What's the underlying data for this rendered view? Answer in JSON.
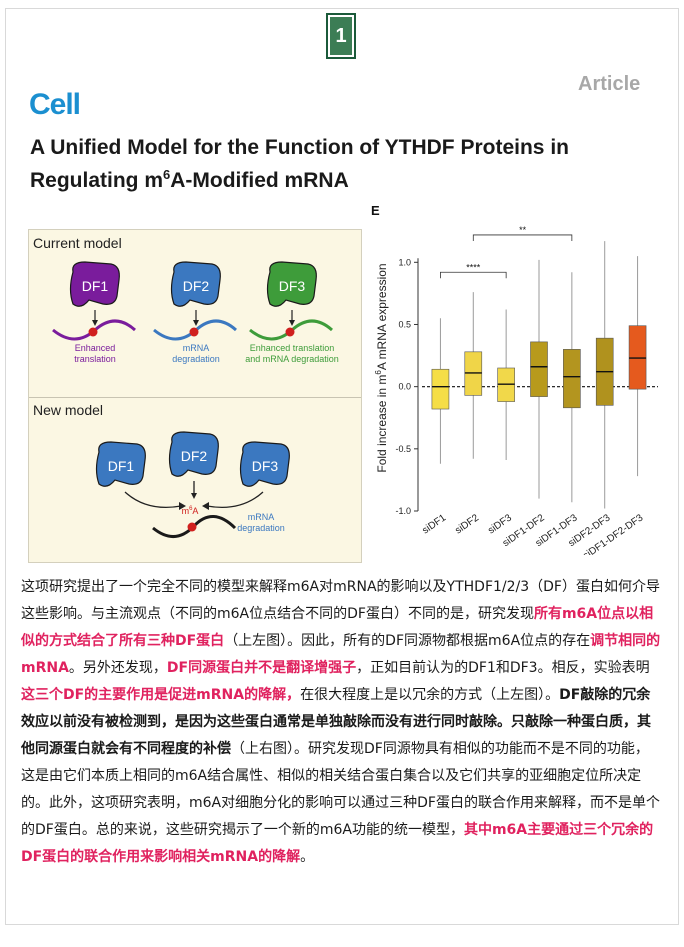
{
  "page_number": "1",
  "journal": {
    "name": "Cell",
    "tag": "Article"
  },
  "title": {
    "line1": "A Unified Model for the Function of YTHDF Proteins in",
    "line2_before": "Regulating m",
    "line2_sup": "6",
    "line2_after": "A-Modified mRNA"
  },
  "figure_left": {
    "current_model": {
      "heading": "Current model",
      "proteins": [
        {
          "name": "DF1",
          "color": "#7a1c9c",
          "caption_lines": [
            "Enhanced",
            "translation"
          ],
          "caption_color": "#7a1c9c"
        },
        {
          "name": "DF2",
          "color": "#3b78c0",
          "caption_lines": [
            "mRNA",
            "degradation"
          ],
          "caption_color": "#3b78c0"
        },
        {
          "name": "DF3",
          "color": "#3e9c3a",
          "caption_lines": [
            "Enhanced translation",
            "and mRNA degradation"
          ],
          "caption_color": "#3e9c3a"
        }
      ]
    },
    "new_model": {
      "heading": "New model",
      "proteins": [
        "DF1",
        "DF2",
        "DF3"
      ],
      "protein_color": "#3b78c0",
      "site_label": "m",
      "site_label_sup": "6",
      "site_label_after": "A",
      "outcome_lines": [
        "mRNA",
        "degradation"
      ],
      "outcome_color": "#3b78c0"
    }
  },
  "chart_data": {
    "panel_label": "E",
    "type": "box",
    "ylabel_before": "Fold increase in m",
    "ylabel_sup": "6",
    "ylabel_after": "A mRNA expression",
    "ylim": [
      -1.0,
      1.3
    ],
    "yticks": [
      "1.0",
      "0.5",
      "0.0",
      "-0.5",
      "-1.0"
    ],
    "ytick_values": [
      1.0,
      0.5,
      0.0,
      -0.5,
      -1.0
    ],
    "reference_line": 0.0,
    "categories": [
      "siDF1",
      "siDF2",
      "siDF3",
      "siDF1-DF2",
      "siDF1-DF3",
      "siDF2-DF3",
      "siDF1-DF2-DF3"
    ],
    "boxes": [
      {
        "name": "siDF1",
        "whisker_low": -0.62,
        "q1": -0.18,
        "median": 0.0,
        "q3": 0.14,
        "whisker_high": 0.55,
        "color": "#f5de47"
      },
      {
        "name": "siDF2",
        "whisker_low": -0.58,
        "q1": -0.07,
        "median": 0.11,
        "q3": 0.28,
        "whisker_high": 0.76,
        "color": "#f0d548"
      },
      {
        "name": "siDF3",
        "whisker_low": -0.59,
        "q1": -0.12,
        "median": 0.02,
        "q3": 0.15,
        "whisker_high": 0.62,
        "color": "#f1d84a"
      },
      {
        "name": "siDF1-DF2",
        "whisker_low": -0.9,
        "q1": -0.08,
        "median": 0.16,
        "q3": 0.36,
        "whisker_high": 1.02,
        "color": "#b89a1c"
      },
      {
        "name": "siDF1-DF3",
        "whisker_low": -0.93,
        "q1": -0.17,
        "median": 0.08,
        "q3": 0.3,
        "whisker_high": 0.92,
        "color": "#b3951f"
      },
      {
        "name": "siDF2-DF3",
        "whisker_low": -0.98,
        "q1": -0.15,
        "median": 0.12,
        "q3": 0.39,
        "whisker_high": 1.17,
        "color": "#b0921e"
      },
      {
        "name": "siDF1-DF2-DF3",
        "whisker_low": -0.72,
        "q1": -0.02,
        "median": 0.23,
        "q3": 0.49,
        "whisker_high": 1.05,
        "color": "#e55a1e"
      }
    ],
    "significance": [
      {
        "label": "****",
        "from": 0,
        "to": 2
      },
      {
        "label": "**",
        "from": 1,
        "to": 4
      },
      {
        "label": "****",
        "from": 0,
        "to": 6
      }
    ]
  },
  "body_segments": [
    {
      "text": "这项研究提出了一个完全不同的模型来解释m6A对mRNA的影响以及YTHDF1/2/3（DF）蛋白如何介导这些影响。与主流观点（不同的m6A位点结合不同的DF蛋白）不同的是，研究发现",
      "style": "normal"
    },
    {
      "text": "所有m6A位点以相似的方式结合了所有三种DF蛋白",
      "style": "highlight"
    },
    {
      "text": "（上左图）。因此，所有的DF同源物都根据m6A位点的存在",
      "style": "normal"
    },
    {
      "text": "调节相同的mRNA",
      "style": "highlight"
    },
    {
      "text": "。另外还发现，",
      "style": "normal"
    },
    {
      "text": "DF同源蛋白并不是翻译增强子",
      "style": "highlight"
    },
    {
      "text": "，正如目前认为的DF1和DF3。相反，实验表明",
      "style": "normal"
    },
    {
      "text": "这三个DF的主要作用是促进mRNA的降解，",
      "style": "highlight"
    },
    {
      "text": "在很大程度上是以冗余的方式（上左图）。",
      "style": "normal"
    },
    {
      "text": "DF敲除的冗余效应以前没有被检测到，是因为这些蛋白通常是单独敲除而没有进行同时敲除。只敲除一种蛋白质，其他同源蛋白就会有不同程度的补偿",
      "style": "bold"
    },
    {
      "text": "（上右图）。研究发现DF同源物具有相似的功能而不是不同的功能，这是由它们本质上相同的m6A结合属性、相似的相关结合蛋白集合以及它们共享的亚细胞定位所决定的。此外，这项研究表明，m6A对细胞分化的影响可以通过三种DF蛋白的联合作用来解释，而不是单个的DF蛋白。总的来说，这些研究揭示了一个新的m6A功能的统一模型，",
      "style": "normal"
    },
    {
      "text": "其中m6A主要通过三个冗余的DF蛋白的联合作用来影响相关mRNA的降解",
      "style": "highlight"
    },
    {
      "text": "。",
      "style": "normal"
    }
  ]
}
